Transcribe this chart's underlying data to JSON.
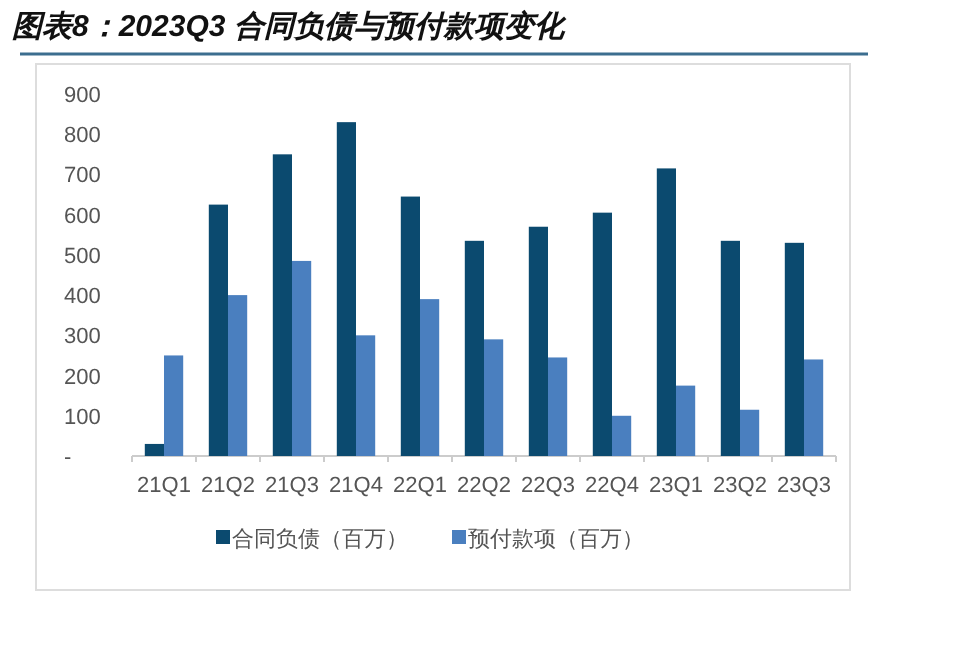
{
  "chart_data": {
    "type": "bar",
    "title": "图表8：2023Q3 合同负债与预付款项变化",
    "categories": [
      "21Q1",
      "21Q2",
      "21Q3",
      "21Q4",
      "22Q1",
      "22Q2",
      "22Q3",
      "22Q4",
      "23Q1",
      "23Q2",
      "23Q3"
    ],
    "series": [
      {
        "name": "合同负债（百万）",
        "color": "#0b4a6f",
        "values": [
          30,
          625,
          750,
          830,
          645,
          535,
          570,
          605,
          715,
          535,
          530
        ]
      },
      {
        "name": "预付款项（百万）",
        "color": "#4a7fbf",
        "values": [
          250,
          400,
          485,
          300,
          390,
          290,
          245,
          100,
          175,
          115,
          240
        ]
      }
    ],
    "ylim": [
      0,
      900
    ],
    "yticks": [
      {
        "value": 0,
        "label": "-"
      },
      100,
      200,
      300,
      400,
      500,
      600,
      700,
      800,
      900
    ],
    "grid": false,
    "legend": "bottom"
  }
}
